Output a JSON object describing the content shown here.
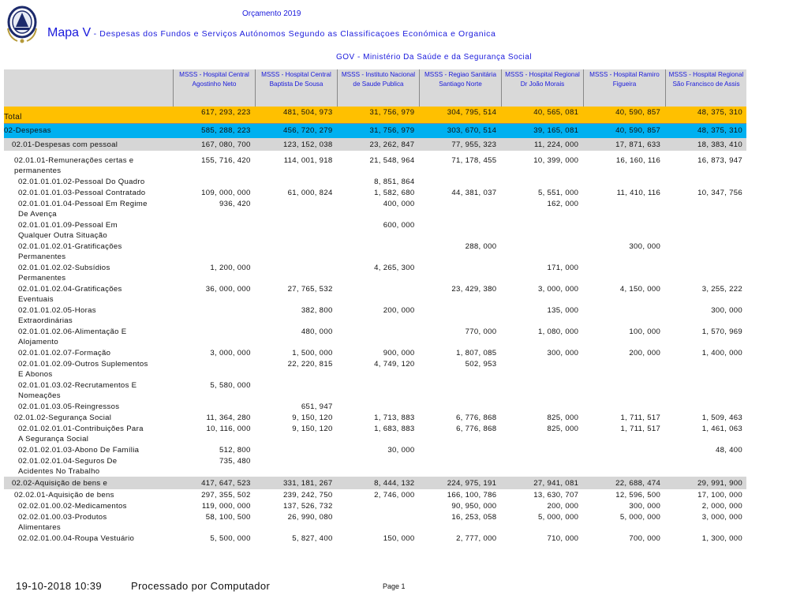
{
  "header": {
    "subtitle": "Orçamento 2019",
    "map_label": "Mapa V",
    "map_title": " - Despesas dos Fundos e Serviços Autónomos Segundo as Classificaçoes Económica e Organica",
    "ministry": "GOV - Ministério Da Saúde e da Segurança Social"
  },
  "columns": [
    "MSSS - Hospital Central Agostinho Neto",
    "MSSS - Hospital Central Baptista De Sousa",
    "MSSS - Instituto Nacional de Saude Publica",
    "MSSS - Regiao Sanitária Santiago Norte",
    "MSSS - Hospital Regional Dr João Morais",
    "MSSS - Hospital Ramiro Figueira",
    "MSSS - Hospital Regional São Francisco de Assis"
  ],
  "colors": {
    "total": "#ffc000",
    "despesas": "#00b0f0",
    "group": "#d6d6d6",
    "heading_text": "#1a1adc"
  },
  "rows": [
    {
      "label": "Total",
      "style": "total",
      "indent": 0,
      "values": [
        "617, 293, 223",
        "481, 504, 973",
        "31, 756, 979",
        "304, 795, 514",
        "40, 565, 081",
        "40, 590, 857",
        "48, 375, 310"
      ]
    },
    {
      "label": "02-Despesas",
      "style": "desp",
      "indent": 0,
      "values": [
        "585, 288, 223",
        "456, 720, 279",
        "31, 756, 979",
        "303, 670, 514",
        "39, 165, 081",
        "40, 590, 857",
        "48, 375, 310"
      ]
    },
    {
      "label": "02.01-Despesas com pessoal",
      "style": "grp",
      "indent": 1,
      "values": [
        "167, 080, 700",
        "123, 152, 038",
        "23, 262, 847",
        "77, 955, 323",
        "11, 224, 000",
        "17, 871, 633",
        "18, 383, 410"
      ]
    },
    {
      "label": "02.01.01-Remunerações certas e permanentes",
      "style": "",
      "indent": 2,
      "values": [
        "155, 716, 420",
        "114, 001, 918",
        "21, 548, 964",
        "71, 178, 455",
        "10, 399, 000",
        "16, 160, 116",
        "16, 873, 947"
      ]
    },
    {
      "label": "02.01.01.01.02-Pessoal Do Quadro",
      "style": "",
      "indent": 3,
      "values": [
        "",
        "",
        "8, 851, 864",
        "",
        "",
        "",
        ""
      ]
    },
    {
      "label": "02.01.01.01.03-Pessoal Contratado",
      "style": "",
      "indent": 3,
      "values": [
        "109, 000, 000",
        "61, 000, 824",
        "1, 582, 680",
        "44, 381, 037",
        "5, 551, 000",
        "11, 410, 116",
        "10, 347, 756"
      ]
    },
    {
      "label": "02.01.01.01.04-Pessoal Em Regime De Avença",
      "style": "",
      "indent": 3,
      "values": [
        "936, 420",
        "",
        "400, 000",
        "",
        "162, 000",
        "",
        ""
      ]
    },
    {
      "label": "02.01.01.01.09-Pessoal Em Qualquer Outra Situação",
      "style": "",
      "indent": 3,
      "values": [
        "",
        "",
        "600, 000",
        "",
        "",
        "",
        ""
      ]
    },
    {
      "label": "02.01.01.02.01-Gratificações Permanentes",
      "style": "",
      "indent": 3,
      "values": [
        "",
        "",
        "",
        "288, 000",
        "",
        "300, 000",
        ""
      ]
    },
    {
      "label": "02.01.01.02.02-Subsídios Permanentes",
      "style": "",
      "indent": 3,
      "values": [
        "1, 200, 000",
        "",
        "4, 265, 300",
        "",
        "171, 000",
        "",
        ""
      ]
    },
    {
      "label": "02.01.01.02.04-Gratificações Eventuais",
      "style": "",
      "indent": 3,
      "values": [
        "36, 000, 000",
        "27, 765, 532",
        "",
        "23, 429, 380",
        "3, 000, 000",
        "4, 150, 000",
        "3, 255, 222"
      ]
    },
    {
      "label": "02.01.01.02.05-Horas Extraordinárias",
      "style": "",
      "indent": 3,
      "values": [
        "",
        "382, 800",
        "200, 000",
        "",
        "135, 000",
        "",
        "300, 000"
      ]
    },
    {
      "label": "02.01.01.02.06-Alimentação E Alojamento",
      "style": "",
      "indent": 3,
      "values": [
        "",
        "480, 000",
        "",
        "770, 000",
        "1, 080, 000",
        "100, 000",
        "1, 570, 969"
      ]
    },
    {
      "label": "02.01.01.02.07-Formação",
      "style": "",
      "indent": 3,
      "values": [
        "3, 000, 000",
        "1, 500, 000",
        "900, 000",
        "1, 807, 085",
        "300, 000",
        "200, 000",
        "1, 400, 000"
      ]
    },
    {
      "label": "02.01.01.02.09-Outros Suplementos E Abonos",
      "style": "",
      "indent": 3,
      "values": [
        "",
        "22, 220, 815",
        "4, 749, 120",
        "502, 953",
        "",
        "",
        ""
      ]
    },
    {
      "label": "02.01.01.03.02-Recrutamentos E Nomeações",
      "style": "",
      "indent": 3,
      "values": [
        "5, 580, 000",
        "",
        "",
        "",
        "",
        "",
        ""
      ]
    },
    {
      "label": "02.01.01.03.05-Reingressos",
      "style": "",
      "indent": 3,
      "values": [
        "",
        "651, 947",
        "",
        "",
        "",
        "",
        ""
      ]
    },
    {
      "label": "02.01.02-Segurança Social",
      "style": "",
      "indent": 2,
      "values": [
        "11, 364, 280",
        "9, 150, 120",
        "1, 713, 883",
        "6, 776, 868",
        "825, 000",
        "1, 711, 517",
        "1, 509, 463"
      ]
    },
    {
      "label": "02.01.02.01.01-Contribuições Para A Segurança Social",
      "style": "",
      "indent": 3,
      "values": [
        "10, 116, 000",
        "9, 150, 120",
        "1, 683, 883",
        "6, 776, 868",
        "825, 000",
        "1, 711, 517",
        "1, 461, 063"
      ]
    },
    {
      "label": "02.01.02.01.03-Abono De Família",
      "style": "",
      "indent": 3,
      "values": [
        "512, 800",
        "",
        "30, 000",
        "",
        "",
        "",
        "48, 400"
      ]
    },
    {
      "label": "02.01.02.01.04-Seguros De Acidentes No Trabalho",
      "style": "",
      "indent": 3,
      "values": [
        "735, 480",
        "",
        "",
        "",
        "",
        "",
        ""
      ]
    },
    {
      "label": "02.02-Aquisição de bens e",
      "style": "grp",
      "indent": 1,
      "values": [
        "417, 647, 523",
        "331, 181, 267",
        "8, 444, 132",
        "224, 975, 191",
        "27, 941, 081",
        "22, 688, 474",
        "29, 991, 900"
      ]
    },
    {
      "label": "02.02.01-Aquisição de bens",
      "style": "",
      "indent": 2,
      "values": [
        "297, 355, 502",
        "239, 242, 750",
        "2, 746, 000",
        "166, 100, 786",
        "13, 630, 707",
        "12, 596, 500",
        "17, 100, 000"
      ]
    },
    {
      "label": "02.02.01.00.02-Medicamentos",
      "style": "",
      "indent": 3,
      "values": [
        "119, 000, 000",
        "137, 526, 732",
        "",
        "90, 950, 000",
        "200, 000",
        "300, 000",
        "2, 000, 000"
      ]
    },
    {
      "label": "02.02.01.00.03-Produtos Alimentares",
      "style": "",
      "indent": 3,
      "values": [
        "58, 100, 500",
        "26, 990, 080",
        "",
        "16, 253, 058",
        "5, 000, 000",
        "5, 000, 000",
        "3, 000, 000"
      ]
    },
    {
      "label": "02.02.01.00.04-Roupa Vestuário",
      "style": "",
      "indent": 3,
      "values": [
        "5, 500, 000",
        "5, 827, 400",
        "150, 000",
        "2, 777, 000",
        "710, 000",
        "700, 000",
        "1, 300, 000"
      ]
    }
  ],
  "footer": {
    "datetime": "19-10-2018 10:39",
    "processed": "Processado por Computador",
    "page": "Page 1"
  }
}
